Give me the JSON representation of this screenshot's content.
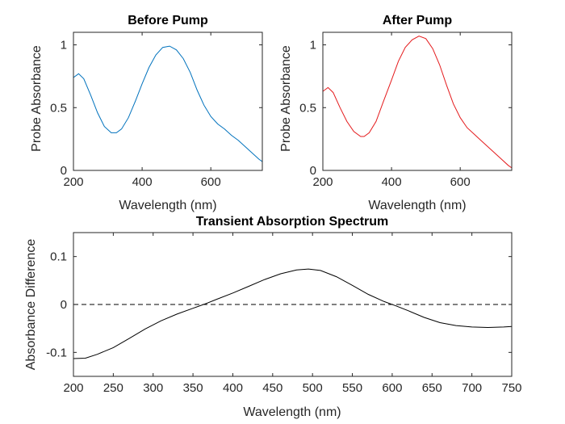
{
  "chart_data": [
    {
      "id": "before",
      "type": "line",
      "title": "Before Pump",
      "xlabel": "Wavelength (nm)",
      "ylabel": "Probe Absorbance",
      "xlim": [
        200,
        750
      ],
      "ylim": [
        0,
        1.1
      ],
      "xticks": [
        200,
        400,
        600
      ],
      "yticks": [
        0,
        0.5,
        1
      ],
      "xtick_labels": [
        "200",
        "400",
        "600"
      ],
      "ytick_labels": [
        "0",
        "0.5",
        "1"
      ],
      "color": "#0072BD",
      "x": [
        200,
        215,
        230,
        250,
        270,
        290,
        310,
        325,
        340,
        360,
        380,
        400,
        420,
        440,
        460,
        480,
        500,
        520,
        540,
        560,
        580,
        600,
        620,
        640,
        660,
        680,
        700,
        720,
        740,
        750
      ],
      "y": [
        0.74,
        0.77,
        0.73,
        0.6,
        0.46,
        0.35,
        0.3,
        0.3,
        0.33,
        0.42,
        0.55,
        0.69,
        0.82,
        0.92,
        0.98,
        0.99,
        0.96,
        0.89,
        0.78,
        0.64,
        0.52,
        0.43,
        0.37,
        0.33,
        0.28,
        0.24,
        0.19,
        0.14,
        0.09,
        0.07
      ]
    },
    {
      "id": "after",
      "type": "line",
      "title": "After Pump",
      "xlabel": "Wavelength (nm)",
      "ylabel": "Probe Absorbance",
      "xlim": [
        200,
        750
      ],
      "ylim": [
        0,
        1.1
      ],
      "xticks": [
        200,
        400,
        600
      ],
      "yticks": [
        0,
        0.5,
        1
      ],
      "xtick_labels": [
        "200",
        "400",
        "600"
      ],
      "ytick_labels": [
        "0",
        "0.5",
        "1"
      ],
      "color": "#E41A1C",
      "x": [
        200,
        215,
        230,
        250,
        270,
        290,
        310,
        320,
        335,
        355,
        375,
        400,
        420,
        440,
        460,
        480,
        500,
        520,
        540,
        560,
        580,
        600,
        620,
        640,
        660,
        680,
        700,
        720,
        740,
        750
      ],
      "y": [
        0.63,
        0.66,
        0.62,
        0.5,
        0.39,
        0.31,
        0.27,
        0.27,
        0.3,
        0.39,
        0.54,
        0.72,
        0.87,
        0.98,
        1.04,
        1.07,
        1.05,
        0.97,
        0.84,
        0.68,
        0.53,
        0.42,
        0.34,
        0.29,
        0.24,
        0.19,
        0.14,
        0.09,
        0.04,
        0.02
      ]
    },
    {
      "id": "transient",
      "type": "line",
      "title": "Transient Absorption Spectrum",
      "xlabel": "Wavelength (nm)",
      "ylabel": "Absorbance Difference",
      "xlim": [
        200,
        750
      ],
      "ylim": [
        -0.15,
        0.15
      ],
      "xticks": [
        200,
        250,
        300,
        350,
        400,
        450,
        500,
        550,
        600,
        650,
        700,
        750
      ],
      "yticks": [
        -0.1,
        0,
        0.1
      ],
      "xtick_labels": [
        "200",
        "250",
        "300",
        "350",
        "400",
        "450",
        "500",
        "550",
        "600",
        "650",
        "700",
        "750"
      ],
      "ytick_labels": [
        "-0.1",
        "0",
        "0.1"
      ],
      "color": "#000000",
      "zero_line": "dashed",
      "x": [
        200,
        215,
        230,
        250,
        270,
        290,
        310,
        330,
        350,
        365,
        380,
        400,
        420,
        440,
        460,
        480,
        495,
        510,
        530,
        550,
        570,
        590,
        605,
        620,
        640,
        660,
        680,
        700,
        720,
        740,
        750
      ],
      "y": [
        -0.113,
        -0.112,
        -0.104,
        -0.09,
        -0.071,
        -0.051,
        -0.034,
        -0.02,
        -0.008,
        0.001,
        0.011,
        0.024,
        0.038,
        0.052,
        0.064,
        0.072,
        0.074,
        0.071,
        0.058,
        0.04,
        0.021,
        0.006,
        -0.003,
        -0.013,
        -0.027,
        -0.038,
        -0.044,
        -0.047,
        -0.048,
        -0.047,
        -0.046
      ]
    }
  ]
}
